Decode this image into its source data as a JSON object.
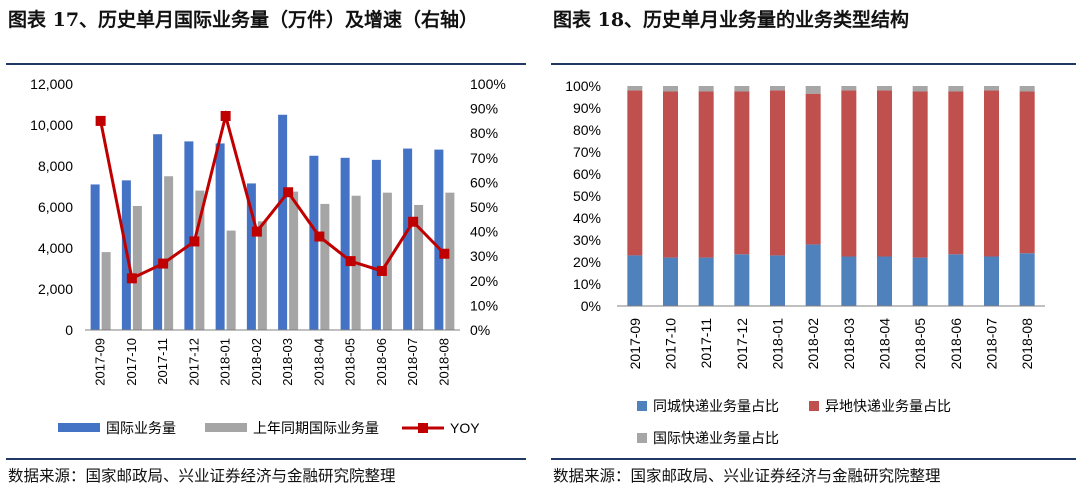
{
  "left": {
    "title": "图表 17、历史单月国际业务量（万件）及增速（右轴）",
    "source": "数据来源：国家邮政局、兴业证券经济与金融研究院整理"
  },
  "right": {
    "title": "图表 18、历史单月业务量的业务类型结构",
    "source": "数据来源：国家邮政局、兴业证券经济与金融研究院整理"
  },
  "colors": {
    "blue": "#4472c4",
    "gray": "#a5a5a5",
    "red": "#c00000",
    "stack_red": "#c0504d",
    "stack_blue": "#4f81bd",
    "stack_gray": "#a6a6a6",
    "rule": "#1f3864"
  },
  "chart_data": [
    {
      "type": "bar",
      "categories": [
        "2017-09",
        "2017-10",
        "2017-11",
        "2017-12",
        "2018-01",
        "2018-02",
        "2018-03",
        "2018-04",
        "2018-05",
        "2018-06",
        "2018-07",
        "2018-08"
      ],
      "y_ticks": [
        "0",
        "2,000",
        "4,000",
        "6,000",
        "8,000",
        "10,000",
        "12,000"
      ],
      "y2_ticks": [
        "0%",
        "10%",
        "20%",
        "30%",
        "40%",
        "50%",
        "60%",
        "70%",
        "80%",
        "90%",
        "100%"
      ],
      "ylim": [
        0,
        12000
      ],
      "y2lim": [
        0,
        100
      ],
      "series": [
        {
          "name": "国际业务量",
          "type": "bar",
          "values": [
            7100,
            7300,
            9550,
            9200,
            9100,
            7150,
            10500,
            8500,
            8400,
            8300,
            8850,
            8800
          ]
        },
        {
          "name": "上年同期国际业务量",
          "type": "bar",
          "values": [
            3800,
            6050,
            7500,
            6800,
            4850,
            5300,
            6750,
            6150,
            6550,
            6700,
            6100,
            6700
          ]
        },
        {
          "name": "YOY",
          "type": "line",
          "axis": "right",
          "values": [
            85,
            21,
            27,
            36,
            87,
            40,
            56,
            38,
            28,
            24,
            44,
            31
          ]
        }
      ]
    },
    {
      "type": "bar",
      "stacked": true,
      "categories": [
        "2017-09",
        "2017-10",
        "2017-11",
        "2017-12",
        "2018-01",
        "2018-02",
        "2018-03",
        "2018-04",
        "2018-05",
        "2018-06",
        "2018-07",
        "2018-08"
      ],
      "y_ticks": [
        "0%",
        "10%",
        "20%",
        "30%",
        "40%",
        "50%",
        "60%",
        "70%",
        "80%",
        "90%",
        "100%"
      ],
      "ylim": [
        0,
        100
      ],
      "series": [
        {
          "name": "同城快递业务量占比",
          "values": [
            23,
            22,
            22,
            23.5,
            23,
            28,
            22.5,
            22.5,
            22,
            23.5,
            22.5,
            24
          ]
        },
        {
          "name": "异地快递业务量占比",
          "values": [
            75,
            75.5,
            75.5,
            74,
            75,
            68.5,
            75.5,
            75.5,
            75.5,
            74,
            75.5,
            73.5
          ]
        },
        {
          "name": "国际快递业务量占比",
          "values": [
            2,
            2.5,
            2.5,
            2.5,
            2,
            3.5,
            2,
            2,
            2.5,
            2.5,
            2,
            2.5
          ]
        }
      ]
    }
  ]
}
